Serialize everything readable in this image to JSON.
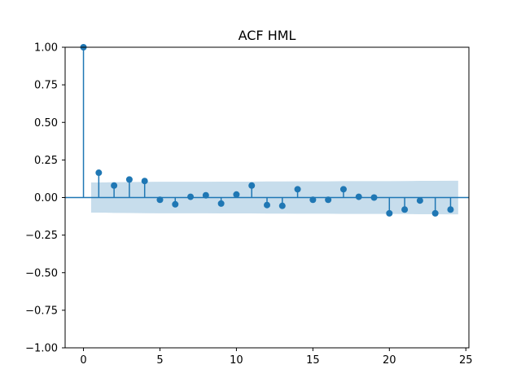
{
  "chart_data": {
    "type": "scatter",
    "subtype": "acf-stem",
    "title": "ACF HML",
    "xlabel": "",
    "ylabel": "",
    "xlim": [
      -1.2,
      25.2
    ],
    "ylim": [
      -1.0,
      1.0
    ],
    "xticks": [
      0,
      5,
      10,
      15,
      20,
      25
    ],
    "yticks": [
      -1.0,
      -0.75,
      -0.5,
      -0.25,
      0.0,
      0.25,
      0.5,
      0.75,
      1.0
    ],
    "xtick_labels": [
      "0",
      "5",
      "10",
      "15",
      "20",
      "25"
    ],
    "ytick_labels": [
      "−1.00",
      "−0.75",
      "−0.50",
      "−0.25",
      "0.00",
      "0.25",
      "0.50",
      "0.75",
      "1.00"
    ],
    "grid": false,
    "legend": "none",
    "series": [
      {
        "lags": [
          0,
          1,
          2,
          3,
          4,
          5,
          6,
          7,
          8,
          9,
          10,
          11,
          12,
          13,
          14,
          15,
          16,
          17,
          18,
          19,
          20,
          21,
          22,
          23,
          24
        ],
        "values": [
          1.0,
          0.165,
          0.08,
          0.12,
          0.11,
          -0.015,
          -0.045,
          0.005,
          0.015,
          -0.04,
          0.02,
          0.08,
          -0.05,
          -0.055,
          0.055,
          -0.015,
          -0.015,
          0.055,
          0.005,
          0.0,
          -0.105,
          -0.08,
          -0.02,
          -0.105,
          -0.08
        ],
        "color": "#1f77b4"
      }
    ],
    "confidence_band": {
      "lags": [
        0.5,
        1,
        2,
        3,
        4,
        5,
        6,
        7,
        8,
        9,
        10,
        11,
        12,
        13,
        14,
        15,
        16,
        17,
        18,
        19,
        20,
        21,
        22,
        23,
        24,
        24.5
      ],
      "upper": [
        0.1,
        0.1,
        0.102,
        0.103,
        0.104,
        0.105,
        0.105,
        0.105,
        0.105,
        0.106,
        0.106,
        0.106,
        0.107,
        0.107,
        0.108,
        0.108,
        0.108,
        0.109,
        0.109,
        0.109,
        0.109,
        0.11,
        0.111,
        0.111,
        0.112,
        0.112
      ],
      "lower": [
        -0.1,
        -0.1,
        -0.102,
        -0.103,
        -0.104,
        -0.105,
        -0.105,
        -0.105,
        -0.105,
        -0.106,
        -0.106,
        -0.106,
        -0.107,
        -0.107,
        -0.108,
        -0.108,
        -0.108,
        -0.109,
        -0.109,
        -0.109,
        -0.109,
        -0.11,
        -0.111,
        -0.111,
        -0.112,
        -0.112
      ],
      "color": "#1f77b4",
      "opacity": 0.25
    }
  }
}
